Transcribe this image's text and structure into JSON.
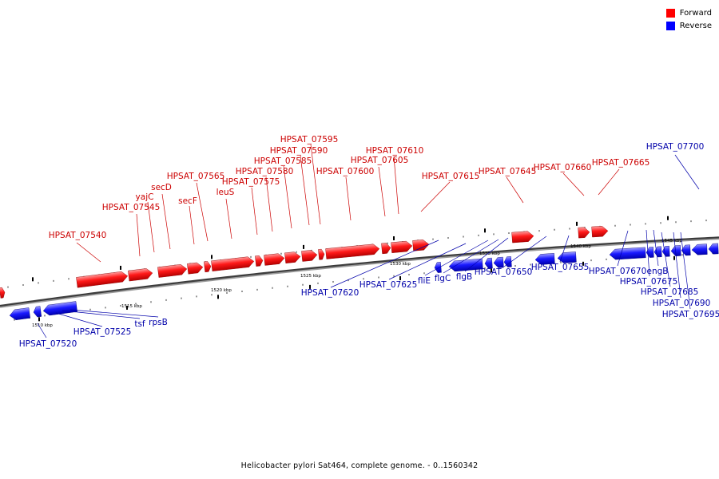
{
  "legend": [
    {
      "label": "Forward",
      "color": "#ff0000"
    },
    {
      "label": "Reverse",
      "color": "#0000ff"
    }
  ],
  "colors": {
    "forward_label": "#cc0000",
    "reverse_label": "#0000aa"
  },
  "ruler_labels": [
    "1510 kbp",
    "1515 kbp",
    "1520 kbp",
    "1525 kbp",
    "1530 kbp",
    "1535 kbp",
    "1540 kbp",
    "1545 kbp"
  ],
  "forward_labels": [
    "HPSAT_07540",
    "HPSAT_07545",
    "yajC",
    "secD",
    "secF",
    "HPSAT_07565",
    "leuS",
    "HPSAT_07575",
    "HPSAT_07580",
    "HPSAT_07585",
    "HPSAT_07590",
    "HPSAT_07595",
    "HPSAT_07600",
    "HPSAT_07605",
    "HPSAT_07610",
    "HPSAT_07615",
    "HPSAT_07645",
    "HPSAT_07660",
    "HPSAT_07665"
  ],
  "reverse_labels": [
    "HPSAT_07520",
    "HPSAT_07525",
    "tsf",
    "rpsB",
    "HPSAT_07620",
    "HPSAT_07625",
    "fliE",
    "flgC",
    "flgB",
    "HPSAT_07650",
    "HPSAT_07655",
    "HPSAT_07670",
    "engB",
    "HPSAT_07675",
    "HPSAT_07685",
    "HPSAT_07690",
    "HPSAT_07695",
    "HPSAT_07700"
  ],
  "footer": "Helicobacter pylori Sat464, complete genome. - 0..1560342"
}
